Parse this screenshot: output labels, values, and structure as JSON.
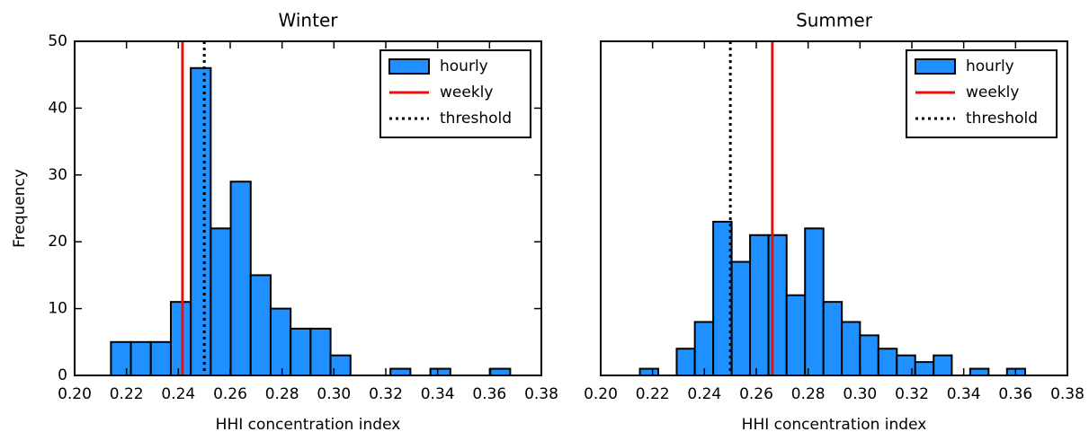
{
  "chart_data": [
    {
      "type": "histogram",
      "title": "Winter",
      "xlabel": "HHI concentration index",
      "ylabel": "Frequency",
      "xlim": [
        0.2,
        0.38
      ],
      "xticks": [
        {
          "value": 0.2,
          "label": "0.20"
        },
        0.22,
        0.24,
        0.26,
        0.28,
        {
          "value": 0.3,
          "label": "0.30"
        },
        0.32,
        0.34,
        0.36,
        0.38
      ],
      "ylim": [
        0,
        50
      ],
      "yticks": [
        0,
        10,
        20,
        30,
        40,
        50
      ],
      "legend": "upper right",
      "series": [
        {
          "name": "hourly",
          "color": "#1e90ff",
          "bins": [
            0.214,
            0.2217,
            0.2294,
            0.2371,
            0.2448,
            0.2525,
            0.2602,
            0.2679,
            0.2756,
            0.2833,
            0.291,
            0.2987,
            0.3064,
            0.3141,
            0.3218,
            0.3295,
            0.3372,
            0.3449,
            0.3526,
            0.3603,
            0.368
          ],
          "values": [
            5,
            5,
            5,
            11,
            46,
            22,
            29,
            15,
            10,
            7,
            7,
            3,
            0,
            0,
            1,
            0,
            1,
            0,
            0,
            1
          ]
        }
      ],
      "lines": [
        {
          "name": "weekly",
          "color": "#e8100c",
          "style": "solid",
          "value": 0.2416
        },
        {
          "name": "threshold",
          "color": "#000000",
          "style": "dotted",
          "value": 0.25
        }
      ]
    },
    {
      "type": "histogram",
      "title": "Summer",
      "xlabel": "HHI concentration index",
      "xlim": [
        0.2,
        0.38
      ],
      "xticks": [
        {
          "value": 0.2,
          "label": "0.20"
        },
        0.22,
        0.24,
        0.26,
        0.28,
        {
          "value": 0.3,
          "label": "0.30"
        },
        0.32,
        0.34,
        0.36,
        0.38
      ],
      "ylim": [
        0,
        50
      ],
      "legend": "upper right",
      "series": [
        {
          "name": "hourly",
          "color": "#1e90ff",
          "bins": [
            0.2151,
            0.2222,
            0.2293,
            0.2363,
            0.2434,
            0.2505,
            0.2576,
            0.2647,
            0.2717,
            0.2788,
            0.2859,
            0.293,
            0.3,
            0.3071,
            0.3142,
            0.3213,
            0.3284,
            0.3354,
            0.3425,
            0.3496,
            0.3567,
            0.3637
          ],
          "values": [
            1,
            0,
            4,
            8,
            23,
            17,
            21,
            21,
            12,
            22,
            11,
            8,
            6,
            4,
            3,
            2,
            3,
            0,
            1,
            0,
            1
          ]
        }
      ],
      "lines": [
        {
          "name": "weekly",
          "color": "#e8100c",
          "style": "solid",
          "value": 0.2662
        },
        {
          "name": "threshold",
          "color": "#000000",
          "style": "dotted",
          "value": 0.25
        }
      ]
    }
  ]
}
